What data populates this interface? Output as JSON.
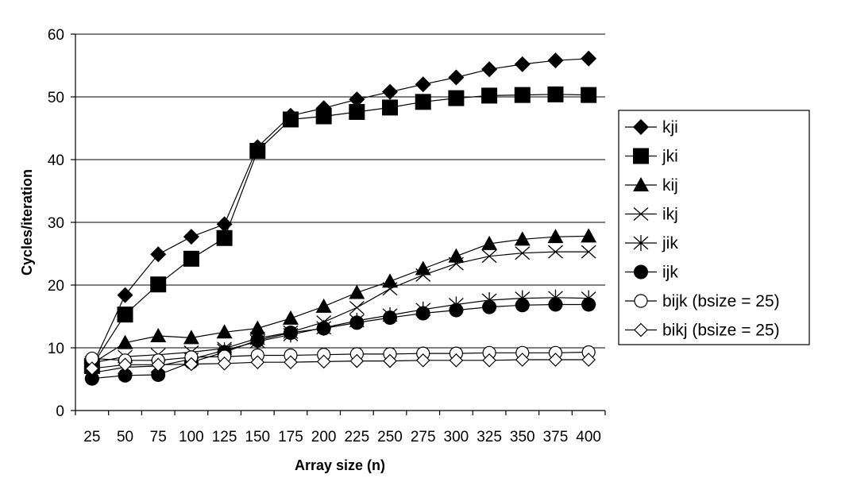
{
  "chart_data": {
    "type": "line",
    "title": "",
    "xlabel": "Array size (n)",
    "ylabel": "Cycles/iteration",
    "ylim": [
      0,
      60
    ],
    "yticks": [
      0,
      10,
      20,
      30,
      40,
      50,
      60
    ],
    "grid": "horizontal",
    "legend_position": "right",
    "categories": [
      "25",
      "50",
      "75",
      "100",
      "125",
      "150",
      "175",
      "200",
      "225",
      "250",
      "275",
      "300",
      "325",
      "350",
      "375",
      "400"
    ],
    "series": [
      {
        "name": "kji",
        "marker": "diamond-filled",
        "values": [
          7.0,
          18.4,
          24.9,
          27.7,
          29.7,
          42.0,
          47.0,
          48.2,
          49.6,
          50.8,
          52.0,
          53.1,
          54.4,
          55.2,
          55.8,
          56.1
        ]
      },
      {
        "name": "jki",
        "marker": "square-filled",
        "values": [
          7.1,
          15.3,
          20.1,
          24.2,
          27.5,
          41.4,
          46.4,
          46.9,
          47.6,
          48.3,
          49.2,
          49.8,
          50.2,
          50.3,
          50.4,
          50.3
        ]
      },
      {
        "name": "kij",
        "marker": "triangle-filled",
        "values": [
          7.5,
          10.8,
          11.9,
          11.6,
          12.5,
          13.1,
          14.7,
          16.6,
          18.8,
          20.6,
          22.6,
          24.6,
          26.6,
          27.3,
          27.7,
          27.8
        ]
      },
      {
        "name": "ikj",
        "marker": "x",
        "values": [
          7.6,
          8.6,
          8.9,
          9.3,
          9.9,
          11.5,
          12.5,
          14.1,
          16.4,
          19.4,
          21.6,
          23.4,
          24.6,
          25.1,
          25.3,
          25.3
        ]
      },
      {
        "name": "jik",
        "marker": "star",
        "values": [
          6.0,
          6.9,
          7.1,
          8.2,
          9.6,
          11.0,
          12.1,
          13.2,
          14.3,
          15.2,
          16.1,
          16.9,
          17.6,
          17.9,
          18.0,
          17.9
        ]
      },
      {
        "name": "ijk",
        "marker": "circle-filled",
        "values": [
          5.1,
          5.6,
          5.7,
          7.7,
          9.3,
          11.2,
          12.4,
          13.1,
          14.0,
          14.8,
          15.5,
          16.0,
          16.5,
          16.8,
          16.9,
          16.9
        ]
      },
      {
        "name": "bijk (bsize = 25)",
        "marker": "circle-open",
        "values": [
          8.3,
          8.0,
          8.0,
          8.5,
          8.6,
          8.8,
          8.8,
          8.9,
          9.0,
          9.0,
          9.1,
          9.1,
          9.2,
          9.2,
          9.2,
          9.3
        ]
      },
      {
        "name": "bikj (bsize = 25)",
        "marker": "diamond-open",
        "values": [
          6.7,
          7.3,
          7.3,
          7.4,
          7.5,
          7.7,
          7.7,
          7.8,
          7.9,
          7.9,
          8.0,
          8.0,
          8.0,
          8.1,
          8.1,
          8.1
        ]
      }
    ]
  }
}
